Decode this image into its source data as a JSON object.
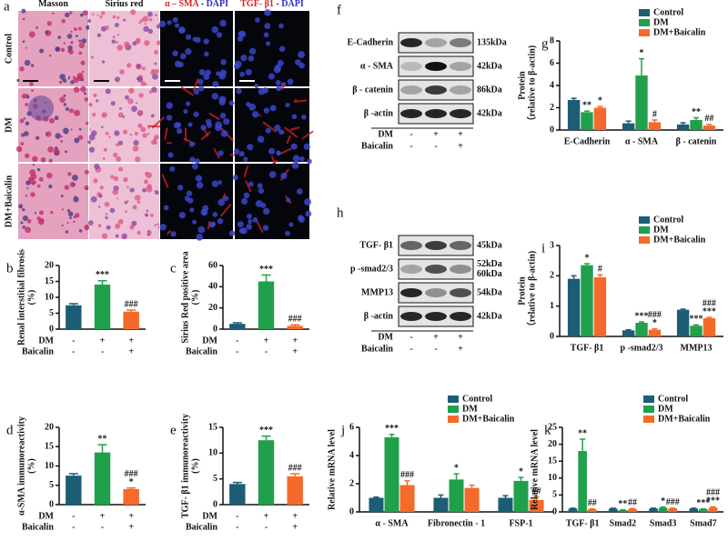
{
  "images": {
    "label": "a",
    "columns": [
      [
        "Masson"
      ],
      [
        "Sirius red"
      ],
      [
        "α – SMA",
        " - ",
        "DAPI"
      ],
      [
        "TGF- β1",
        " - ",
        "DAPI"
      ]
    ],
    "rows": [
      "Control",
      "DM",
      "DM+Baicalin"
    ]
  },
  "blots": [
    {
      "label": "f",
      "rows": [
        {
          "name": "E-Cadherin",
          "size": [
            "135kDa"
          ]
        },
        {
          "name": "α - SMA",
          "size": [
            "42kDa"
          ]
        },
        {
          "name": "β - catenin",
          "size": [
            "86kDa"
          ]
        },
        {
          "name": "β -actin",
          "size": [
            "42kDa"
          ]
        }
      ],
      "conditions": [
        {
          "name": "DM",
          "marks": [
            "-",
            "+",
            "+"
          ]
        },
        {
          "name": "Baicalin",
          "marks": [
            "-",
            "-",
            "+"
          ]
        }
      ]
    },
    {
      "label": "h",
      "rows": [
        {
          "name": "TGF- β1",
          "size": [
            "45kDa"
          ]
        },
        {
          "name": "p -smad2/3",
          "size": [
            "52kDa",
            "60kDa"
          ]
        },
        {
          "name": "MMP13",
          "size": [
            "54kDa"
          ]
        },
        {
          "name": "β -actin",
          "size": [
            "42kDa"
          ]
        }
      ],
      "conditions": [
        {
          "name": "DM",
          "marks": [
            "-",
            "+",
            "+"
          ]
        },
        {
          "name": "Baicalin",
          "marks": [
            "-",
            "-",
            "+"
          ]
        }
      ]
    }
  ],
  "chart_data": [
    {
      "type": "bar",
      "label": "b",
      "ylabel": [
        "Renal interstitial fibrosis",
        "(%)"
      ],
      "categories": [
        null,
        null,
        null
      ],
      "values": [
        7.5,
        14,
        5.5
      ],
      "errors": [
        0.5,
        1.2,
        0.5
      ],
      "colors": [
        "#1b5d75",
        "#21a04b",
        "#f56a2a"
      ],
      "annotations": [
        null,
        [
          "***"
        ],
        [
          "###"
        ]
      ],
      "ylim": [
        0,
        20
      ],
      "yticks": [
        0,
        5,
        10,
        15,
        20
      ],
      "conditions": [
        {
          "name": "DM",
          "marks": [
            "-",
            "+",
            "+"
          ]
        },
        {
          "name": "Baicalin",
          "marks": [
            "-",
            "-",
            "+"
          ]
        }
      ]
    },
    {
      "type": "bar",
      "label": "c",
      "ylabel": [
        "Sirius Red positive area",
        "(%)"
      ],
      "categories": [
        null,
        null,
        null
      ],
      "values": [
        5,
        45,
        3
      ],
      "errors": [
        1,
        6,
        1
      ],
      "colors": [
        "#1b5d75",
        "#21a04b",
        "#f56a2a"
      ],
      "annotations": [
        null,
        [
          "***"
        ],
        [
          "###"
        ]
      ],
      "ylim": [
        0,
        60
      ],
      "yticks": [
        0,
        20,
        40,
        60
      ],
      "conditions": [
        {
          "name": "DM",
          "marks": [
            "-",
            "+",
            "+"
          ]
        },
        {
          "name": "Baicalin",
          "marks": [
            "-",
            "-",
            "+"
          ]
        }
      ]
    },
    {
      "type": "bar",
      "label": "d",
      "ylabel": [
        "α-SMA  immunoreactivity",
        "(%)"
      ],
      "categories": [
        null,
        null,
        null
      ],
      "values": [
        7.5,
        13.5,
        4
      ],
      "errors": [
        0.5,
        2,
        0.3
      ],
      "colors": [
        "#1b5d75",
        "#21a04b",
        "#f56a2a"
      ],
      "annotations": [
        null,
        [
          "**"
        ],
        [
          "###",
          "*"
        ]
      ],
      "ylim": [
        0,
        20
      ],
      "yticks": [
        0,
        5,
        10,
        15,
        20
      ],
      "conditions": [
        {
          "name": "DM",
          "marks": [
            "-",
            "+",
            "+"
          ]
        },
        {
          "name": "Baicalin",
          "marks": [
            "-",
            "-",
            "+"
          ]
        }
      ]
    },
    {
      "type": "bar",
      "label": "e",
      "ylabel": [
        "TGF- β1 immunoreactivity",
        "(%)"
      ],
      "categories": [
        null,
        null,
        null
      ],
      "values": [
        4,
        12.5,
        5.5
      ],
      "errors": [
        0.3,
        0.8,
        0.5
      ],
      "colors": [
        "#1b5d75",
        "#21a04b",
        "#f56a2a"
      ],
      "annotations": [
        null,
        [
          "***"
        ],
        [
          "###"
        ]
      ],
      "ylim": [
        0,
        15
      ],
      "yticks": [
        0,
        5,
        10,
        15
      ],
      "conditions": [
        {
          "name": "DM",
          "marks": [
            "-",
            "+",
            "+"
          ]
        },
        {
          "name": "Baicalin",
          "marks": [
            "-",
            "-",
            "+"
          ]
        }
      ]
    },
    {
      "type": "grouped-bar",
      "label": "g",
      "ylabel": [
        "Protein",
        "（relative to β-actin)"
      ],
      "categories": [
        "E-Cadherin",
        "α - SMA",
        "β - catenin"
      ],
      "ylim": [
        0,
        8
      ],
      "yticks": [
        0,
        2,
        4,
        6,
        8
      ],
      "series": [
        {
          "name": "Control",
          "color": "#1b5d75",
          "values": [
            2.7,
            0.6,
            0.5
          ],
          "errors": [
            0.15,
            0.2,
            0.15
          ],
          "annotations": [
            null,
            null,
            null
          ]
        },
        {
          "name": "DM",
          "color": "#21a04b",
          "values": [
            1.6,
            4.9,
            0.9
          ],
          "errors": [
            0.1,
            1.5,
            0.2
          ],
          "annotations": [
            [
              "**"
            ],
            [
              "*"
            ],
            [
              "**"
            ]
          ]
        },
        {
          "name": "DM+Baicalin",
          "color": "#f56a2a",
          "values": [
            2.0,
            0.7,
            0.4
          ],
          "errors": [
            0.1,
            0.2,
            0.1
          ],
          "annotations": [
            [
              "*"
            ],
            [
              "#"
            ],
            [
              "##"
            ]
          ]
        }
      ]
    },
    {
      "type": "grouped-bar",
      "label": "i",
      "ylabel": [
        "Protein",
        "（relative to β-actin)"
      ],
      "categories": [
        "TGF- β1",
        "p -smad2/3",
        "MMP13"
      ],
      "ylim": [
        0,
        3
      ],
      "yticks": [
        0,
        1,
        2,
        3
      ],
      "series": [
        {
          "name": "Control",
          "color": "#1b5d75",
          "values": [
            1.9,
            0.2,
            0.88
          ],
          "errors": [
            0.1,
            0.02,
            0.02
          ],
          "annotations": [
            null,
            null,
            null
          ]
        },
        {
          "name": "DM",
          "color": "#21a04b",
          "values": [
            2.35,
            0.45,
            0.35
          ],
          "errors": [
            0.05,
            0.03,
            0.03
          ],
          "annotations": [
            [
              "*"
            ],
            [
              "***"
            ],
            [
              "***"
            ]
          ]
        },
        {
          "name": "DM+Baicalin",
          "color": "#f56a2a",
          "values": [
            1.95,
            0.22,
            0.6
          ],
          "errors": [
            0.08,
            0.03,
            0.03
          ],
          "annotations": [
            [
              "#"
            ],
            [
              "###",
              "*"
            ],
            [
              "###",
              "***"
            ]
          ]
        }
      ]
    },
    {
      "type": "grouped-bar",
      "label": "j",
      "ylabel": [
        "Relative mRNA level"
      ],
      "categories": [
        "α - SMA",
        "Fibronectin - 1",
        "FSP-1"
      ],
      "ylim": [
        0,
        6
      ],
      "yticks": [
        0,
        2,
        4,
        6
      ],
      "series": [
        {
          "name": "Control",
          "color": "#1b5d75",
          "values": [
            1.0,
            1.0,
            1.0
          ],
          "errors": [
            0.05,
            0.2,
            0.15
          ],
          "annotations": [
            null,
            null,
            null
          ]
        },
        {
          "name": "DM",
          "color": "#21a04b",
          "values": [
            5.3,
            2.3,
            2.2
          ],
          "errors": [
            0.2,
            0.4,
            0.25
          ],
          "annotations": [
            [
              "***"
            ],
            [
              "*"
            ],
            [
              "*"
            ]
          ]
        },
        {
          "name": "DM+Baicalin",
          "color": "#f56a2a",
          "values": [
            1.9,
            1.7,
            0.85
          ],
          "errors": [
            0.3,
            0.2,
            0.2
          ],
          "annotations": [
            [
              "###"
            ],
            null,
            [
              "##"
            ]
          ]
        }
      ]
    },
    {
      "type": "grouped-bar",
      "label": "k",
      "ylabel": [
        "Relative mRNA level"
      ],
      "categories": [
        "TGF- β1",
        "Smad2",
        "Smad3",
        "Smad7"
      ],
      "ylim": [
        0,
        25
      ],
      "yticks": [
        0,
        5,
        10,
        15,
        20,
        25
      ],
      "series": [
        {
          "name": "Control",
          "color": "#1b5d75",
          "values": [
            1,
            1,
            1,
            1
          ],
          "errors": [
            0.1,
            0.1,
            0.1,
            0.1
          ],
          "annotations": [
            null,
            null,
            null,
            null
          ]
        },
        {
          "name": "DM",
          "color": "#21a04b",
          "values": [
            18,
            0.5,
            1.2,
            0.8
          ],
          "errors": [
            3.5,
            0.1,
            0.2,
            0.1
          ],
          "annotations": [
            [
              "**"
            ],
            [
              "**"
            ],
            [
              "*"
            ],
            [
              "***"
            ]
          ]
        },
        {
          "name": "DM+Baicalin",
          "color": "#f56a2a",
          "values": [
            0.8,
            0.9,
            1.0,
            1.3
          ],
          "errors": [
            0.1,
            0.1,
            0.1,
            0.2
          ],
          "annotations": [
            [
              "##"
            ],
            [
              "##"
            ],
            [
              "###"
            ],
            [
              "###",
              "***"
            ]
          ]
        }
      ]
    }
  ]
}
